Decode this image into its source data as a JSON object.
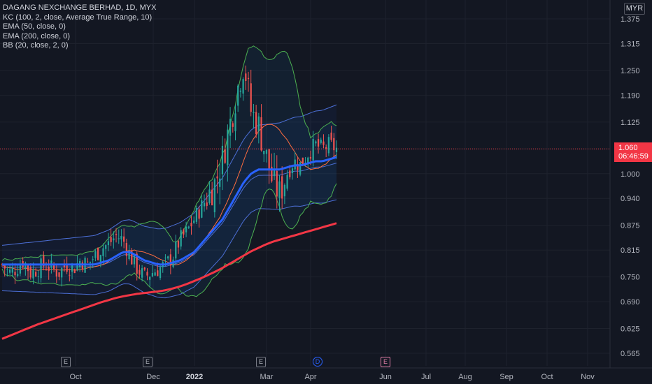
{
  "header": {
    "symbol_title": "DAGANG NEXCHANGE BERHAD, 1D, MYX",
    "indicators": [
      "KC (100, 2, close, Average True Range, 10)",
      "EMA (50, close, 0)",
      "EMA (200, close, 0)",
      "BB (20, close, 2, 0)"
    ]
  },
  "currency_badge": "MYR",
  "current_price": {
    "price": "1.060",
    "countdown": "06:46:59"
  },
  "events": [
    {
      "label": "E",
      "type": "earnings",
      "month": "Sep"
    },
    {
      "label": "E",
      "type": "earnings",
      "month": "Nov"
    },
    {
      "label": "E",
      "type": "earnings",
      "month": "Feb"
    },
    {
      "label": "D",
      "type": "dividend",
      "month": "Apr"
    },
    {
      "label": "E",
      "type": "upcoming-earnings",
      "month": "May"
    }
  ],
  "colors": {
    "background": "#131722",
    "up": "#26a69a",
    "down": "#ef5350",
    "ema50": "#2962ff",
    "ema200": "#f23645",
    "kc": "#4c6fd6",
    "bb": "#4caf50",
    "bb_basis": "#ff6d3f",
    "price_line": "#f23645"
  },
  "chart_data": {
    "type": "candlestick",
    "y_ticks": [
      "1.375",
      "1.315",
      "1.250",
      "1.190",
      "1.125",
      "1.060",
      "1.000",
      "0.940",
      "0.875",
      "0.815",
      "0.750",
      "0.690",
      "0.625",
      "0.565"
    ],
    "x_ticks": [
      "Oct",
      "Dec",
      "2022",
      "Mar",
      "Apr",
      "Jun",
      "Jul",
      "Aug",
      "Sep",
      "Oct",
      "Nov"
    ],
    "ylim": [
      0.545,
      1.395
    ],
    "series": [
      {
        "name": "Close (approx. weekly)",
        "values": [
          0.78,
          0.76,
          0.77,
          0.79,
          0.76,
          0.77,
          0.78,
          0.77,
          0.76,
          0.78,
          0.77,
          0.79,
          0.78,
          0.8,
          0.82,
          0.83,
          0.85,
          0.84,
          0.8,
          0.77,
          0.75,
          0.76,
          0.77,
          0.78,
          0.8,
          0.84,
          0.86,
          0.89,
          0.92,
          0.95,
          0.98,
          1.04,
          1.12,
          1.2,
          1.27,
          1.15,
          1.12,
          1.05,
          0.98,
          0.95,
          1.0,
          1.03,
          1.02,
          1.05,
          1.07,
          1.06,
          1.07,
          1.06
        ]
      },
      {
        "name": "EMA (50, close, 0)",
        "values": [
          0.78,
          0.78,
          0.78,
          0.78,
          0.78,
          0.78,
          0.78,
          0.78,
          0.78,
          0.78,
          0.78,
          0.78,
          0.78,
          0.78,
          0.785,
          0.79,
          0.8,
          0.81,
          0.81,
          0.8,
          0.79,
          0.785,
          0.78,
          0.78,
          0.785,
          0.79,
          0.8,
          0.81,
          0.83,
          0.85,
          0.87,
          0.89,
          0.92,
          0.95,
          0.98,
          1.0,
          1.01,
          1.01,
          1.01,
          1.01,
          1.015,
          1.02,
          1.02,
          1.025,
          1.03,
          1.03,
          1.035,
          1.04
        ]
      },
      {
        "name": "EMA (200, close, 0)",
        "values": [
          0.6,
          0.607,
          0.614,
          0.621,
          0.628,
          0.635,
          0.641,
          0.647,
          0.653,
          0.659,
          0.665,
          0.671,
          0.677,
          0.683,
          0.689,
          0.694,
          0.699,
          0.703,
          0.706,
          0.709,
          0.711,
          0.713,
          0.715,
          0.718,
          0.722,
          0.727,
          0.733,
          0.74,
          0.747,
          0.755,
          0.763,
          0.772,
          0.782,
          0.792,
          0.802,
          0.812,
          0.82,
          0.828,
          0.835,
          0.84,
          0.845,
          0.85,
          0.855,
          0.86,
          0.865,
          0.87,
          0.875,
          0.88
        ]
      }
    ],
    "grid": true
  }
}
